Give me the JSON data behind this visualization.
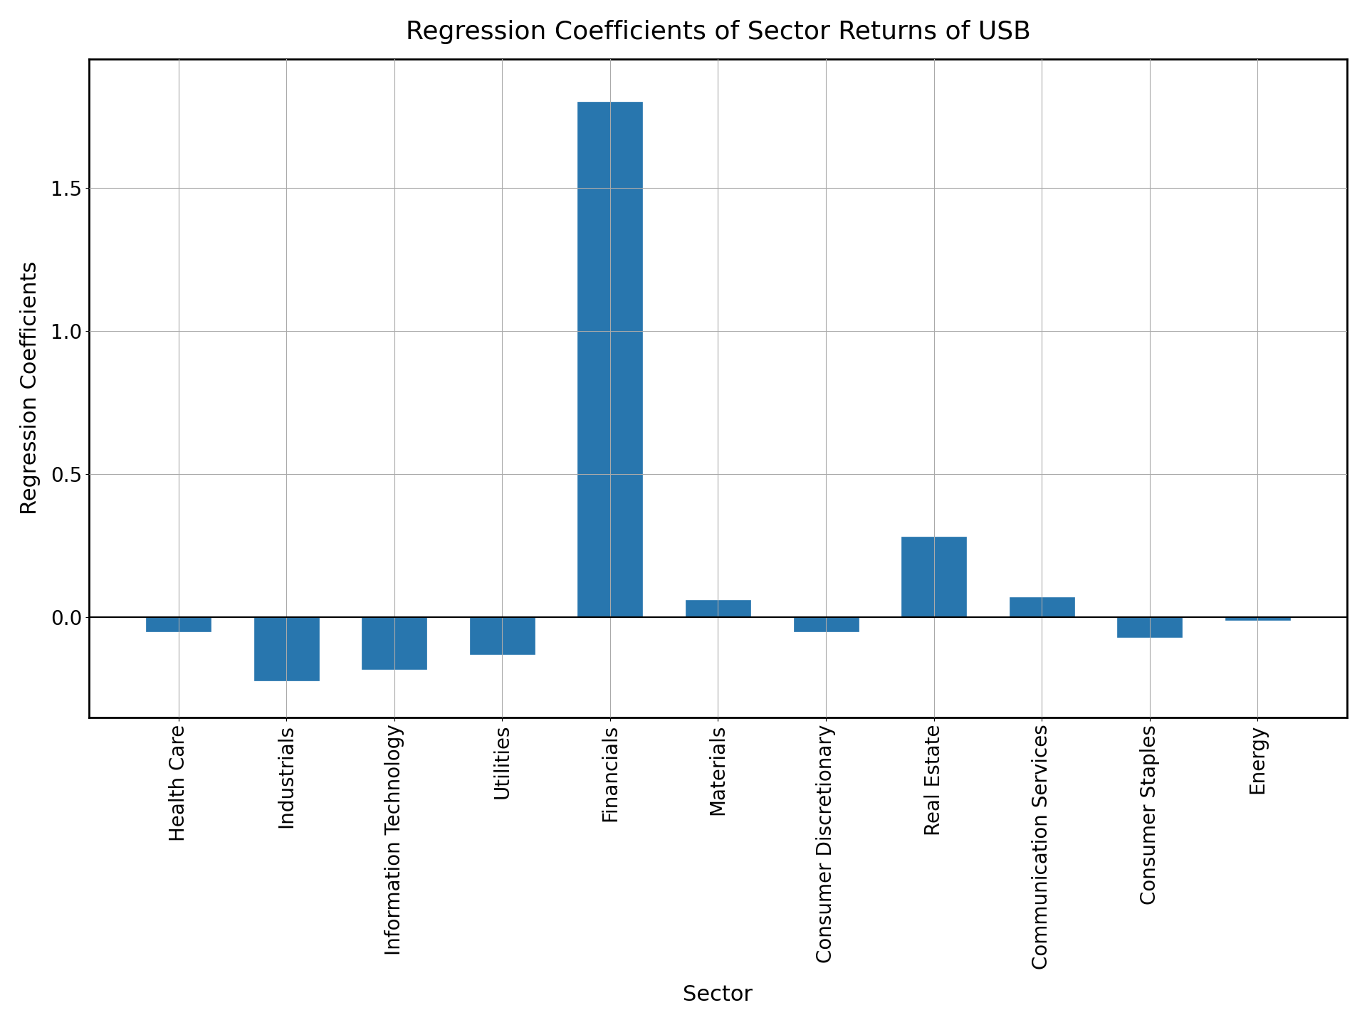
{
  "title": "Regression Coefficients of Sector Returns of USB",
  "xlabel": "Sector",
  "ylabel": "Regression Coefficients",
  "categories": [
    "Health Care",
    "Industrials",
    "Information Technology",
    "Utilities",
    "Financials",
    "Materials",
    "Consumer Discretionary",
    "Real Estate",
    "Communication Services",
    "Consumer Staples",
    "Energy"
  ],
  "values": [
    -0.05,
    -0.22,
    -0.18,
    -0.13,
    1.8,
    0.06,
    -0.05,
    0.28,
    0.07,
    -0.07,
    -0.01
  ],
  "bar_color": "#2876AE",
  "bar_edgecolor": "#2876AE",
  "ylim": [
    -0.35,
    1.95
  ],
  "title_fontsize": 26,
  "label_fontsize": 22,
  "tick_fontsize": 20,
  "xtick_fontsize": 20,
  "background_color": "#ffffff",
  "grid_color": "#aaaaaa"
}
